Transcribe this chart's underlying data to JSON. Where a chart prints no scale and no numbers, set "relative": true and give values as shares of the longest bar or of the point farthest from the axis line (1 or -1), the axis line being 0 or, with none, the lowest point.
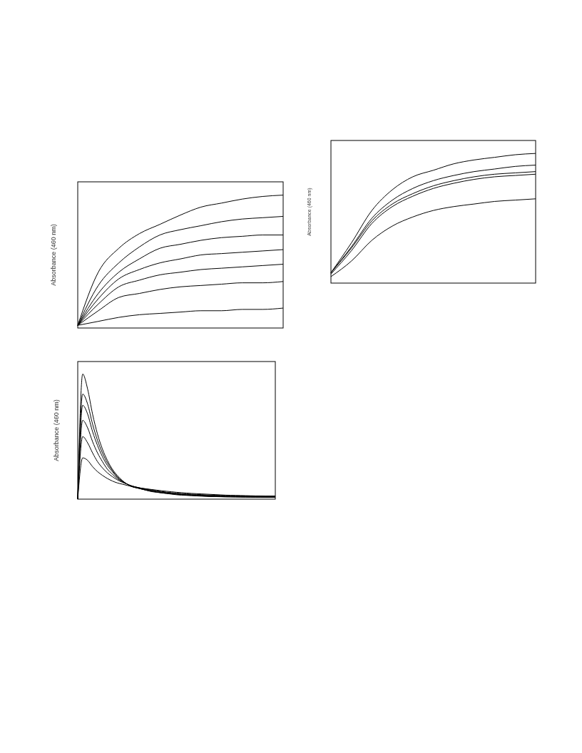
{
  "chart_data": [
    {
      "type": "line",
      "ylabel": "Absorbance (460 nm)",
      "relative": true,
      "categories": [
        null,
        null,
        null,
        null,
        null,
        null,
        null,
        null,
        null,
        null,
        null
      ],
      "series": [
        {
          "color": "#000000",
          "values": [
            0.02,
            0.42,
            0.6,
            0.71,
            0.78,
            0.85,
            0.91,
            0.94,
            0.97,
            0.99,
            1.0
          ]
        },
        {
          "color": "#000000",
          "values": [
            0.02,
            0.32,
            0.49,
            0.61,
            0.7,
            0.74,
            0.77,
            0.8,
            0.82,
            0.83,
            0.84
          ]
        },
        {
          "color": "#000000",
          "values": [
            0.02,
            0.26,
            0.42,
            0.52,
            0.6,
            0.63,
            0.66,
            0.68,
            0.69,
            0.7,
            0.7
          ]
        },
        {
          "color": "#000000",
          "values": [
            0.02,
            0.22,
            0.37,
            0.44,
            0.49,
            0.52,
            0.55,
            0.56,
            0.57,
            0.58,
            0.59
          ]
        },
        {
          "color": "#000000",
          "values": [
            0.02,
            0.18,
            0.31,
            0.36,
            0.4,
            0.42,
            0.44,
            0.45,
            0.46,
            0.47,
            0.48
          ]
        },
        {
          "color": "#000000",
          "values": [
            0.02,
            0.13,
            0.23,
            0.26,
            0.29,
            0.31,
            0.32,
            0.33,
            0.34,
            0.34,
            0.35
          ]
        },
        {
          "color": "#000000",
          "values": [
            0.02,
            0.05,
            0.08,
            0.1,
            0.11,
            0.12,
            0.13,
            0.13,
            0.14,
            0.14,
            0.15
          ]
        }
      ]
    },
    {
      "type": "line",
      "ylabel": "Absorbance (460 nm)",
      "relative": true,
      "categories": [
        null,
        null,
        null,
        null,
        null,
        null,
        null,
        null,
        null,
        null,
        null
      ],
      "series": [
        {
          "color": "#000000",
          "values": [
            0.08,
            0.31,
            0.56,
            0.72,
            0.82,
            0.87,
            0.92,
            0.95,
            0.97,
            0.99,
            1.0
          ]
        },
        {
          "color": "#000000",
          "values": [
            0.08,
            0.28,
            0.5,
            0.64,
            0.73,
            0.79,
            0.83,
            0.86,
            0.88,
            0.9,
            0.91
          ]
        },
        {
          "color": "#000000",
          "values": [
            0.08,
            0.27,
            0.48,
            0.61,
            0.69,
            0.75,
            0.79,
            0.82,
            0.84,
            0.85,
            0.86
          ]
        },
        {
          "color": "#000000",
          "values": [
            0.07,
            0.25,
            0.46,
            0.59,
            0.67,
            0.73,
            0.77,
            0.8,
            0.82,
            0.83,
            0.84
          ]
        },
        {
          "color": "#000000",
          "values": [
            0.05,
            0.17,
            0.33,
            0.44,
            0.51,
            0.56,
            0.59,
            0.61,
            0.63,
            0.64,
            0.65
          ]
        }
      ]
    },
    {
      "type": "line",
      "ylabel": "Absorbance (460 nm)",
      "relative": true,
      "categories": [
        null,
        null,
        null,
        null,
        null,
        null,
        null,
        null,
        null,
        null,
        null,
        null,
        null,
        null,
        null,
        null,
        null,
        null,
        null,
        null,
        null,
        null,
        null,
        null,
        null,
        null,
        null,
        null,
        null,
        null,
        null,
        null,
        null,
        null,
        null,
        null,
        null,
        null,
        null,
        null,
        null
      ],
      "series": [
        {
          "color": "#000000",
          "values": [
            0,
            1.0,
            0.88,
            0.68,
            0.52,
            0.4,
            0.31,
            0.24,
            0.19,
            0.15,
            0.12,
            0.1,
            0.09,
            0.08,
            0.07,
            0.06,
            0.055,
            0.05,
            0.045,
            0.04,
            0.035,
            0.032,
            0.03,
            0.028,
            0.026,
            0.024,
            0.022,
            0.02,
            0.02,
            0.019,
            0.018,
            0.018,
            0.017,
            0.017,
            0.016,
            0.016,
            0.015,
            0.015,
            0.015,
            0.015,
            0.015
          ]
        },
        {
          "color": "#000000",
          "values": [
            0,
            0.84,
            0.76,
            0.6,
            0.47,
            0.37,
            0.29,
            0.23,
            0.18,
            0.145,
            0.12,
            0.1,
            0.09,
            0.08,
            0.07,
            0.062,
            0.056,
            0.05,
            0.046,
            0.042,
            0.038,
            0.035,
            0.032,
            0.03,
            0.028,
            0.026,
            0.024,
            0.022,
            0.021,
            0.02,
            0.019,
            0.018,
            0.018,
            0.017,
            0.017,
            0.016,
            0.016,
            0.016,
            0.015,
            0.015,
            0.015
          ]
        },
        {
          "color": "#000000",
          "values": [
            0,
            0.75,
            0.68,
            0.54,
            0.43,
            0.34,
            0.27,
            0.22,
            0.175,
            0.145,
            0.12,
            0.1,
            0.09,
            0.08,
            0.072,
            0.065,
            0.058,
            0.053,
            0.048,
            0.044,
            0.04,
            0.037,
            0.034,
            0.032,
            0.03,
            0.028,
            0.026,
            0.024,
            0.023,
            0.022,
            0.021,
            0.02,
            0.02,
            0.019,
            0.019,
            0.018,
            0.018,
            0.018,
            0.017,
            0.017,
            0.017
          ]
        },
        {
          "color": "#000000",
          "values": [
            0,
            0.63,
            0.57,
            0.46,
            0.37,
            0.3,
            0.24,
            0.2,
            0.165,
            0.14,
            0.12,
            0.105,
            0.095,
            0.085,
            0.077,
            0.07,
            0.063,
            0.057,
            0.052,
            0.048,
            0.044,
            0.041,
            0.038,
            0.036,
            0.034,
            0.032,
            0.03,
            0.028,
            0.027,
            0.026,
            0.025,
            0.024,
            0.023,
            0.022,
            0.022,
            0.021,
            0.021,
            0.02,
            0.02,
            0.02,
            0.02
          ]
        },
        {
          "color": "#000000",
          "values": [
            0,
            0.5,
            0.45,
            0.37,
            0.3,
            0.25,
            0.21,
            0.18,
            0.155,
            0.135,
            0.12,
            0.105,
            0.095,
            0.087,
            0.08,
            0.073,
            0.067,
            0.061,
            0.056,
            0.052,
            0.048,
            0.045,
            0.042,
            0.04,
            0.038,
            0.036,
            0.034,
            0.032,
            0.031,
            0.03,
            0.029,
            0.028,
            0.027,
            0.026,
            0.025,
            0.025,
            0.024,
            0.024,
            0.023,
            0.023,
            0.023
          ]
        },
        {
          "color": "#000000",
          "values": [
            0,
            0.33,
            0.31,
            0.26,
            0.22,
            0.19,
            0.165,
            0.145,
            0.13,
            0.12,
            0.11,
            0.1,
            0.093,
            0.087,
            0.082,
            0.077,
            0.072,
            0.067,
            0.063,
            0.059,
            0.055,
            0.052,
            0.049,
            0.046,
            0.044,
            0.042,
            0.04,
            0.038,
            0.036,
            0.034,
            0.032,
            0.031,
            0.03,
            0.029,
            0.028,
            0.027,
            0.026,
            0.026,
            0.025,
            0.025,
            0.025
          ]
        }
      ]
    }
  ]
}
